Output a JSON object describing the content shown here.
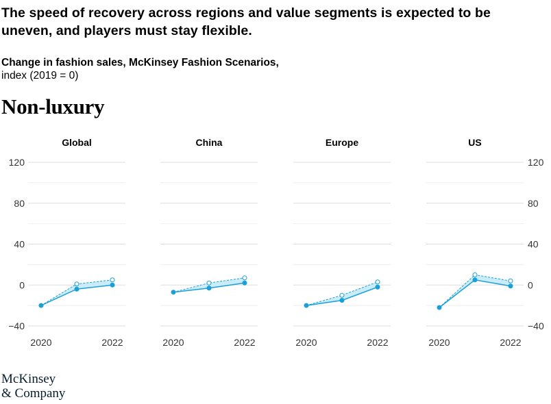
{
  "header": {
    "headline": "The speed of recovery across regions and value segments is expected to be uneven, and players must stay flexible.",
    "subtitle": "Change in fashion sales, McKinsey Fashion Scenarios,",
    "subtitle_index": "index (2019 = 0)",
    "section": "Non-luxury"
  },
  "logo": {
    "line1": "McKinsey",
    "line2": "& Company"
  },
  "colors": {
    "line": "#1a9fd8",
    "band": "#c9ecf8",
    "grid": "#dddddd",
    "tick_text": "#333333"
  },
  "chart_data": {
    "type": "line",
    "ylim": [
      -40,
      120
    ],
    "y_ticks": [
      -40,
      0,
      40,
      80,
      120
    ],
    "y_tick_labels": [
      "−40",
      "0",
      "40",
      "80",
      "120"
    ],
    "x_ticks_labeled": [
      "2020",
      "2022"
    ],
    "x": [
      2020,
      2021,
      2022
    ],
    "grid": true,
    "panels": [
      {
        "title": "Global",
        "series": [
          {
            "style": "solid",
            "values": [
              -20,
              -4,
              0
            ]
          },
          {
            "style": "dashed",
            "values": [
              -20,
              1,
              5
            ]
          }
        ]
      },
      {
        "title": "China",
        "series": [
          {
            "style": "solid",
            "values": [
              -7,
              -3,
              2
            ]
          },
          {
            "style": "dashed",
            "values": [
              -7,
              2,
              7
            ]
          }
        ]
      },
      {
        "title": "Europe",
        "series": [
          {
            "style": "solid",
            "values": [
              -20,
              -15,
              -2
            ]
          },
          {
            "style": "dashed",
            "values": [
              -20,
              -10,
              3
            ]
          }
        ]
      },
      {
        "title": "US",
        "series": [
          {
            "style": "solid",
            "values": [
              -22,
              5,
              -1
            ]
          },
          {
            "style": "dashed",
            "values": [
              -22,
              10,
              4
            ]
          }
        ]
      }
    ]
  }
}
